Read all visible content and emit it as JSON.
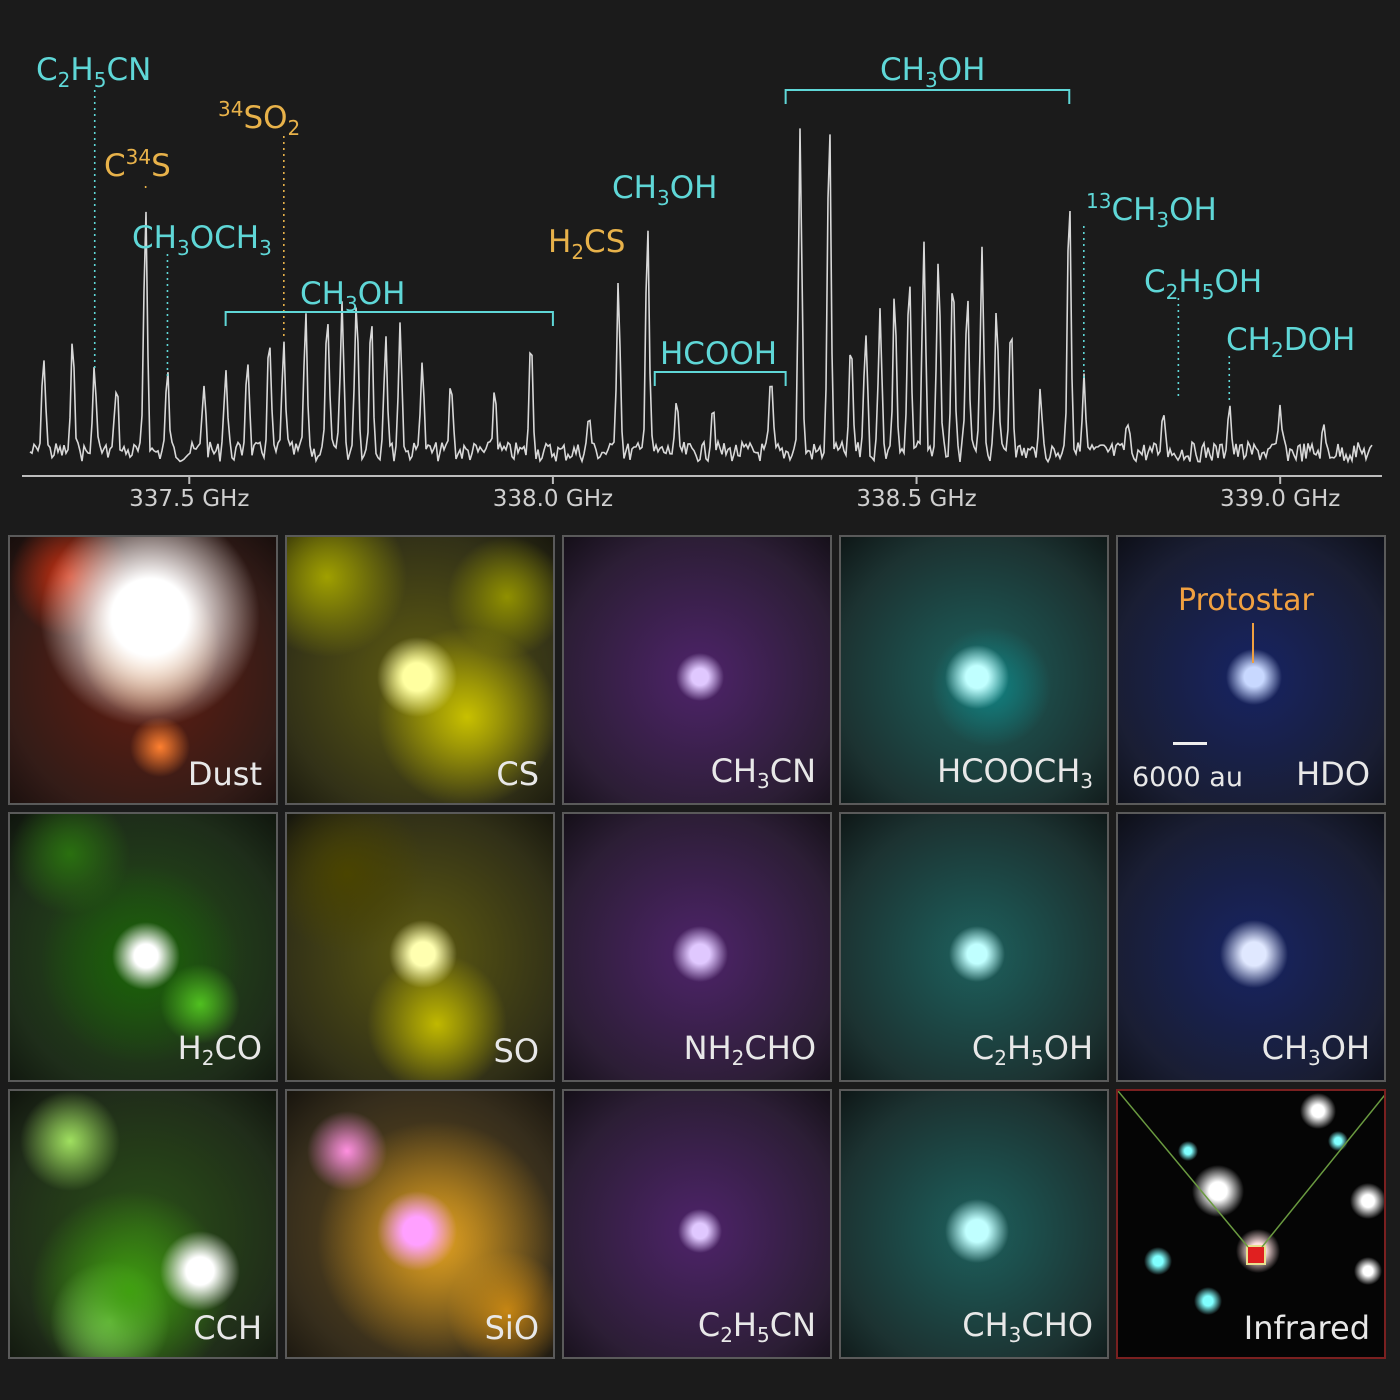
{
  "chart_data": {
    "type": "line",
    "x_unit": "GHz",
    "xlim": [
      337.27,
      339.14
    ],
    "tick_labels": [
      "337.5 GHz",
      "338.0 GHz",
      "338.5 GHz",
      "339.0 GHz"
    ],
    "ticks": [
      337.5,
      338.0,
      338.5,
      339.0
    ],
    "peaks": [
      {
        "x": 337.3,
        "h": 0.28
      },
      {
        "x": 337.34,
        "h": 0.32
      },
      {
        "x": 337.37,
        "h": 0.24
      },
      {
        "x": 337.4,
        "h": 0.2
      },
      {
        "x": 337.44,
        "h": 0.7
      },
      {
        "x": 337.47,
        "h": 0.22
      },
      {
        "x": 337.52,
        "h": 0.2
      },
      {
        "x": 337.55,
        "h": 0.24
      },
      {
        "x": 337.58,
        "h": 0.28
      },
      {
        "x": 337.61,
        "h": 0.32
      },
      {
        "x": 337.63,
        "h": 0.3
      },
      {
        "x": 337.66,
        "h": 0.37
      },
      {
        "x": 337.69,
        "h": 0.4
      },
      {
        "x": 337.71,
        "h": 0.42
      },
      {
        "x": 337.73,
        "h": 0.45
      },
      {
        "x": 337.75,
        "h": 0.4
      },
      {
        "x": 337.77,
        "h": 0.34
      },
      {
        "x": 337.79,
        "h": 0.36
      },
      {
        "x": 337.82,
        "h": 0.26
      },
      {
        "x": 337.86,
        "h": 0.2
      },
      {
        "x": 337.92,
        "h": 0.18
      },
      {
        "x": 337.97,
        "h": 0.32
      },
      {
        "x": 338.05,
        "h": 0.1
      },
      {
        "x": 338.09,
        "h": 0.5
      },
      {
        "x": 338.13,
        "h": 0.66
      },
      {
        "x": 338.17,
        "h": 0.12
      },
      {
        "x": 338.22,
        "h": 0.14
      },
      {
        "x": 338.3,
        "h": 0.2
      },
      {
        "x": 338.34,
        "h": 0.9
      },
      {
        "x": 338.38,
        "h": 0.95
      },
      {
        "x": 338.41,
        "h": 0.3
      },
      {
        "x": 338.43,
        "h": 0.35
      },
      {
        "x": 338.45,
        "h": 0.4
      },
      {
        "x": 338.47,
        "h": 0.45
      },
      {
        "x": 338.49,
        "h": 0.5
      },
      {
        "x": 338.51,
        "h": 0.58
      },
      {
        "x": 338.53,
        "h": 0.56
      },
      {
        "x": 338.55,
        "h": 0.48
      },
      {
        "x": 338.57,
        "h": 0.45
      },
      {
        "x": 338.59,
        "h": 0.55
      },
      {
        "x": 338.61,
        "h": 0.42
      },
      {
        "x": 338.63,
        "h": 0.38
      },
      {
        "x": 338.67,
        "h": 0.15
      },
      {
        "x": 338.71,
        "h": 0.76
      },
      {
        "x": 338.73,
        "h": 0.2
      },
      {
        "x": 338.79,
        "h": 0.08
      },
      {
        "x": 338.84,
        "h": 0.12
      },
      {
        "x": 338.93,
        "h": 0.14
      },
      {
        "x": 339.0,
        "h": 0.12
      },
      {
        "x": 339.06,
        "h": 0.06
      }
    ],
    "annotations": [
      {
        "text": "C2H5CN",
        "x": 337.37,
        "color": "cyan"
      },
      {
        "text": "C34S",
        "x": 337.44,
        "color": "orange"
      },
      {
        "text": "34SO2",
        "x": 337.63,
        "color": "orange"
      },
      {
        "text": "CH3OCH3",
        "x": 337.47,
        "color": "cyan"
      },
      {
        "text": "CH3OH",
        "x_range": [
          337.55,
          338.0
        ],
        "color": "cyan"
      },
      {
        "text": "H2CS",
        "x": 338.09,
        "color": "orange"
      },
      {
        "text": "CH3OH",
        "x": 338.13,
        "color": "cyan"
      },
      {
        "text": "HCOOH",
        "x_range": [
          338.14,
          338.32
        ],
        "color": "cyan"
      },
      {
        "text": "CH3OH",
        "x_range": [
          338.32,
          338.71
        ],
        "color": "cyan"
      },
      {
        "text": "13CH3OH",
        "x": 338.73,
        "color": "cyan"
      },
      {
        "text": "C2H5OH",
        "x": 338.86,
        "color": "cyan"
      },
      {
        "text": "CH2DOH",
        "x": 338.93,
        "color": "cyan"
      }
    ]
  },
  "spectrum_labels": {
    "c2h5cn": {
      "a": "C",
      "s1": "2",
      "b": "H",
      "s2": "5",
      "c": "CN"
    },
    "c34s": {
      "a": "C",
      "sup": "34",
      "b": "S"
    },
    "so2": {
      "sup": "34",
      "a": "SO",
      "s1": "2"
    },
    "ch3och3": {
      "a": "CH",
      "s1": "3",
      "b": "OCH",
      "s2": "3"
    },
    "ch3oh_a": {
      "a": "CH",
      "s1": "3",
      "b": "OH"
    },
    "h2cs": {
      "a": "H",
      "s1": "2",
      "b": "CS"
    },
    "ch3oh_b": {
      "a": "CH",
      "s1": "3",
      "b": "OH"
    },
    "hcooh": {
      "a": "HCOOH"
    },
    "ch3oh_c": {
      "a": "CH",
      "s1": "3",
      "b": "OH"
    },
    "c13h3oh": {
      "sup": "13",
      "a": "CH",
      "s1": "3",
      "b": "OH"
    },
    "c2h5oh": {
      "a": "C",
      "s1": "2",
      "b": "H",
      "s2": "5",
      "c": "OH"
    },
    "ch2doh": {
      "a": "CH",
      "s1": "2",
      "b": "DOH"
    }
  },
  "panels": [
    {
      "id": "dust",
      "t": [
        "Dust"
      ],
      "sub": [],
      "color": "#d02000"
    },
    {
      "id": "cs",
      "t": [
        "CS"
      ],
      "sub": [],
      "color": "#c8c000"
    },
    {
      "id": "ch3cn",
      "t": [
        "CH",
        "CN"
      ],
      "sub": [
        "3"
      ],
      "color": "#9a30e0"
    },
    {
      "id": "hcooch3",
      "t": [
        "HCOOCH",
        ""
      ],
      "sub": [
        "3"
      ],
      "color": "#20c8c0"
    },
    {
      "id": "hdo",
      "t": [
        "HDO"
      ],
      "sub": [],
      "color": "#1030d0"
    },
    {
      "id": "h2co",
      "t": [
        "H",
        "CO"
      ],
      "sub": [
        "2"
      ],
      "color": "#30a010"
    },
    {
      "id": "so",
      "t": [
        "SO"
      ],
      "sub": [],
      "color": "#c0b800"
    },
    {
      "id": "nh2cho",
      "t": [
        "NH",
        "CHO"
      ],
      "sub": [
        "2"
      ],
      "color": "#9a30e0"
    },
    {
      "id": "c2h5oh",
      "t": [
        "C",
        "H",
        "OH"
      ],
      "sub": [
        "2",
        "5"
      ],
      "color": "#20c8c0"
    },
    {
      "id": "ch3oh",
      "t": [
        "CH",
        "OH"
      ],
      "sub": [
        "3"
      ],
      "color": "#1030d0"
    },
    {
      "id": "cch",
      "t": [
        "CCH"
      ],
      "sub": [],
      "color": "#40a010"
    },
    {
      "id": "sio",
      "t": [
        "SiO"
      ],
      "sub": [],
      "color": "#e0a020"
    },
    {
      "id": "c2h5cn",
      "t": [
        "C",
        "H",
        "CN"
      ],
      "sub": [
        "2",
        "5"
      ],
      "color": "#9a30e0"
    },
    {
      "id": "ch3cho",
      "t": [
        "CH",
        "CHO"
      ],
      "sub": [
        "3"
      ],
      "color": "#20c8c0"
    },
    {
      "id": "infrared",
      "t": [
        "Infrared"
      ],
      "sub": [],
      "color": "#000000"
    }
  ],
  "protostar_label": "Protostar",
  "scale_label": "6000 au",
  "colors": {
    "cyan": "#5fd7d7",
    "orange": "#e8b24a",
    "trace": "#d8d8d8",
    "bg": "#1b1b1b"
  }
}
